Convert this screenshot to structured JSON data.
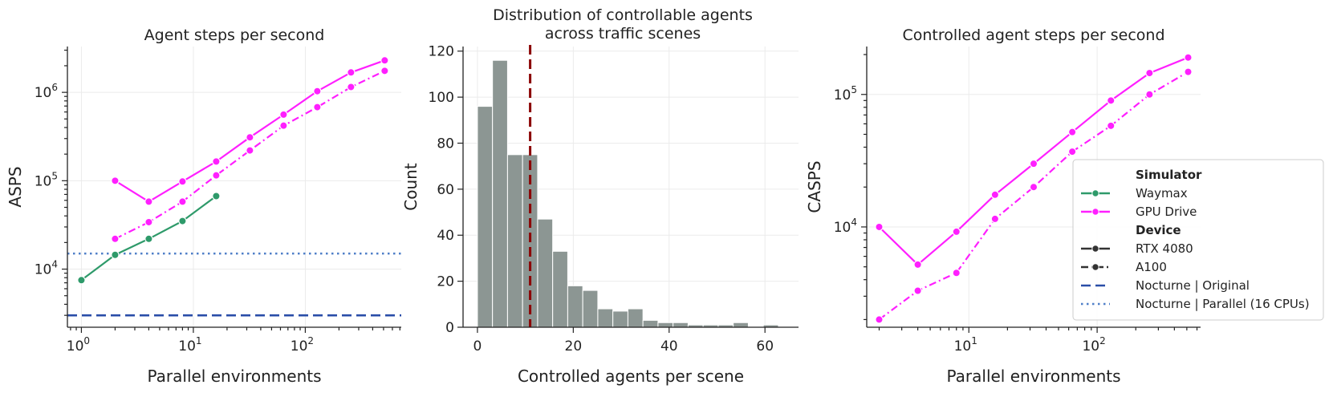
{
  "chart_data": [
    {
      "type": "line",
      "title": "Agent steps per second",
      "xlabel": "Parallel environments",
      "ylabel": "ASPS",
      "xscale": "log",
      "yscale": "log",
      "xlim": [
        0.75,
        720
      ],
      "ylim": [
        2200,
        3300000
      ],
      "xticks": [
        {
          "value": 1,
          "base": "10",
          "exp": "0"
        },
        {
          "value": 10,
          "base": "10",
          "exp": "1"
        },
        {
          "value": 100,
          "base": "10",
          "exp": "2"
        }
      ],
      "yticks": [
        {
          "value": 10000,
          "base": "10",
          "exp": "4"
        },
        {
          "value": 100000,
          "base": "10",
          "exp": "5"
        },
        {
          "value": 1000000,
          "base": "10",
          "exp": "6"
        }
      ],
      "grid": true,
      "series": [
        {
          "name": "Waymax",
          "device": "RTX 4080",
          "color": "#2e9a6a",
          "dash": "solid",
          "x": [
            1,
            2,
            4,
            8,
            16
          ],
          "y": [
            7500,
            14500,
            22000,
            35000,
            67000
          ]
        },
        {
          "name": "GPU Drive",
          "device": "RTX 4080",
          "color": "#ff1fff",
          "dash": "solid",
          "x": [
            2,
            4,
            8,
            16,
            32,
            64,
            128,
            256,
            512
          ],
          "y": [
            100000,
            58000,
            98000,
            165000,
            310000,
            560000,
            1030000,
            1680000,
            2300000
          ]
        },
        {
          "name": "GPU Drive",
          "device": "A100",
          "color": "#ff1fff",
          "dash": "dashdot",
          "x": [
            2,
            4,
            8,
            16,
            32,
            64,
            128,
            256,
            512
          ],
          "y": [
            22000,
            34000,
            58000,
            115000,
            220000,
            420000,
            680000,
            1150000,
            1750000
          ]
        }
      ],
      "hlines": [
        {
          "name": "Nocturne | Original",
          "y": 3000,
          "color": "#2a4ea8",
          "dash": "dashed"
        },
        {
          "name": "Nocturne | Parallel (16 CPUs)",
          "y": 15000,
          "color": "#4f7fc8",
          "dash": "dotted"
        }
      ]
    },
    {
      "type": "bar",
      "title_lines": [
        "Distribution of controllable agents",
        "across traffic scenes"
      ],
      "xlabel": "Controlled agents per scene",
      "ylabel": "Count",
      "xlim": [
        -3,
        67
      ],
      "ylim": [
        0,
        122
      ],
      "xticks": [
        0,
        20,
        40,
        60
      ],
      "yticks": [
        0,
        20,
        40,
        60,
        80,
        100,
        120
      ],
      "grid": true,
      "bin_width": 3.14,
      "bin_start": 0,
      "bar_color": "#8c9693",
      "counts": [
        96,
        116,
        75,
        75,
        47,
        33,
        18,
        16,
        8,
        7,
        8,
        3,
        2,
        2,
        1,
        1,
        1,
        2,
        0,
        1
      ],
      "vline": {
        "x": 11,
        "color": "#8b0000",
        "dash": "dashed"
      }
    },
    {
      "type": "line",
      "title": "Controlled agent steps per second",
      "xlabel": "Parallel environments",
      "ylabel": "CASPS",
      "xscale": "log",
      "yscale": "log",
      "xlim": [
        1.6,
        640
      ],
      "ylim": [
        1750,
        230000
      ],
      "xticks": [
        {
          "value": 10,
          "base": "10",
          "exp": "1"
        },
        {
          "value": 100,
          "base": "10",
          "exp": "2"
        }
      ],
      "yticks": [
        {
          "value": 10000,
          "base": "10",
          "exp": "4"
        },
        {
          "value": 100000,
          "base": "10",
          "exp": "5"
        }
      ],
      "grid": true,
      "series": [
        {
          "name": "GPU Drive",
          "device": "RTX 4080",
          "color": "#ff1fff",
          "dash": "solid",
          "x": [
            2,
            4,
            8,
            16,
            32,
            64,
            128,
            256,
            512
          ],
          "y": [
            10000,
            5200,
            9200,
            17500,
            30000,
            52000,
            90000,
            145000,
            190000
          ]
        },
        {
          "name": "GPU Drive",
          "device": "A100",
          "color": "#ff1fff",
          "dash": "dashdot",
          "x": [
            2,
            4,
            8,
            16,
            32,
            64,
            128,
            256,
            512
          ],
          "y": [
            2000,
            3300,
            4500,
            11500,
            20000,
            37000,
            58000,
            100000,
            148000
          ]
        }
      ]
    }
  ],
  "legend": {
    "placement": "center-right",
    "entries": [
      {
        "kind": "header",
        "label": "Simulator"
      },
      {
        "kind": "line",
        "label": "Waymax",
        "color": "#2e9a6a",
        "dash": "solid",
        "marker": true
      },
      {
        "kind": "line",
        "label": "GPU Drive",
        "color": "#ff1fff",
        "dash": "solid",
        "marker": true
      },
      {
        "kind": "header",
        "label": "Device"
      },
      {
        "kind": "line",
        "label": "RTX 4080",
        "color": "#333333",
        "dash": "solid",
        "marker": true
      },
      {
        "kind": "line",
        "label": "A100",
        "color": "#333333",
        "dash": "dashdot",
        "marker": true
      },
      {
        "kind": "line",
        "label": "Nocturne | Original",
        "color": "#2a4ea8",
        "dash": "dashed",
        "marker": false
      },
      {
        "kind": "line",
        "label": "Nocturne | Parallel (16 CPUs)",
        "color": "#4f7fc8",
        "dash": "dotted",
        "marker": false
      }
    ]
  }
}
